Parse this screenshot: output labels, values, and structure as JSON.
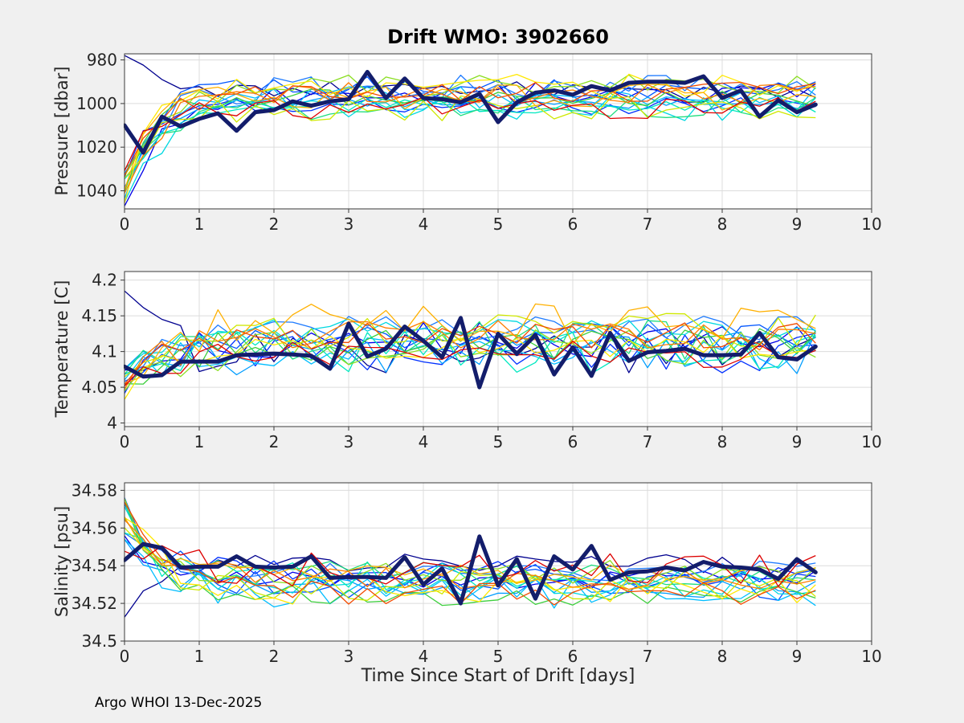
{
  "figure": {
    "title": "Drift WMO: 3902660",
    "xlabel": "Time Since Start of Drift [days]",
    "footer": "Argo WHOI 13-Dec-2025",
    "background": "#f0f0f0",
    "plot_background": "#ffffff",
    "grid_color": "#dcdcdc",
    "axis_color": "#3a3a3a",
    "text_color": "#262626",
    "mean_line_color": "#131d6b"
  },
  "chart_data": [
    {
      "type": "line",
      "panel": "pressure",
      "ylabel": "Pressure [dbar]",
      "xlim": [
        0,
        10
      ],
      "ylim": [
        977.2,
        1048.3
      ],
      "y_reversed": true,
      "grid": true,
      "xticks": [
        0,
        1,
        2,
        3,
        4,
        5,
        6,
        7,
        8,
        9,
        10
      ],
      "xtick_labels": [
        "0",
        "1",
        "2",
        "3",
        "4",
        "5",
        "6",
        "7",
        "8",
        "9",
        "10"
      ],
      "yticks": [
        980,
        1000,
        1020,
        1040
      ],
      "ytick_labels": [
        "980",
        "1000",
        "1020",
        "1040"
      ],
      "x_sampling": {
        "start": 0,
        "step": 0.25,
        "count": 38
      },
      "mean_series": {
        "name": "drift-mean",
        "width": 5,
        "values": [
          1010,
          1022.5,
          1006,
          1010.5,
          1007,
          1004.5,
          1012.5,
          1004,
          1003,
          999,
          1001,
          999,
          998,
          985.5,
          997.5,
          988.5,
          997.5,
          998,
          999.5,
          995.5,
          1008.5,
          999.5,
          995,
          994,
          996,
          992,
          994,
          990.5,
          990,
          990,
          990.5,
          987.5,
          997.5,
          994,
          1006,
          998.5,
          1004,
          1000.5
        ]
      },
      "ensemble": {
        "description": "about 18 thin jet-colored profile lines starting deep near 1031-1048 dbar, converging to a 991-1003 dbar plateau with ~4 dbar scatter",
        "start_range": [
          1031,
          1047
        ],
        "plateau_range": [
          991.5,
          1002.5
        ],
        "tau_range": [
          0.3,
          0.6
        ],
        "noise": 4.2,
        "override_start": {
          "series_index": 0,
          "value": 978
        }
      }
    },
    {
      "type": "line",
      "panel": "temperature",
      "ylabel": "Temperature [C]",
      "xlim": [
        0,
        10
      ],
      "ylim": [
        3.995,
        4.212
      ],
      "y_reversed": false,
      "grid": true,
      "xticks": [
        0,
        1,
        2,
        3,
        4,
        5,
        6,
        7,
        8,
        9,
        10
      ],
      "xtick_labels": [
        "0",
        "1",
        "2",
        "3",
        "4",
        "5",
        "6",
        "7",
        "8",
        "9",
        "10"
      ],
      "yticks": [
        4,
        4.05,
        4.1,
        4.15,
        4.2
      ],
      "ytick_labels": [
        "4",
        "4.05",
        "4.1",
        "4.15",
        "4.2"
      ],
      "x_sampling": {
        "start": 0,
        "step": 0.25,
        "count": 38
      },
      "mean_series": {
        "name": "drift-mean",
        "width": 5,
        "values": [
          4.079,
          4.065,
          4.067,
          4.086,
          4.086,
          4.086,
          4.095,
          4.096,
          4.097,
          4.096,
          4.094,
          4.076,
          4.139,
          4.093,
          4.104,
          4.135,
          4.115,
          4.092,
          4.147,
          4.05,
          4.125,
          4.097,
          4.123,
          4.068,
          4.106,
          4.066,
          4.126,
          4.087,
          4.099,
          4.101,
          4.104,
          4.095,
          4.095,
          4.096,
          4.126,
          4.092,
          4.089,
          4.107
        ]
      },
      "ensemble": {
        "description": "thin lines start 4.03-4.085 C, rise to 4.095-4.14 C band with ~0.02 C scatter, occasional peaks to 4.2",
        "start_range": [
          4.028,
          4.085
        ],
        "plateau_range": [
          4.095,
          4.138
        ],
        "tau_range": [
          0.35,
          0.65
        ],
        "noise": 0.023,
        "override_start": {
          "series_index": 0,
          "value": 4.188
        }
      }
    },
    {
      "type": "line",
      "panel": "salinity",
      "ylabel": "Salinity [psu]",
      "xlim": [
        0,
        10
      ],
      "ylim": [
        34.5,
        34.584
      ],
      "y_reversed": false,
      "grid": true,
      "xticks": [
        0,
        1,
        2,
        3,
        4,
        5,
        6,
        7,
        8,
        9,
        10
      ],
      "xtick_labels": [
        "0",
        "1",
        "2",
        "3",
        "4",
        "5",
        "6",
        "7",
        "8",
        "9",
        "10"
      ],
      "yticks": [
        34.5,
        34.52,
        34.54,
        34.56,
        34.58
      ],
      "ytick_labels": [
        "34.5",
        "34.52",
        "34.54",
        "34.56",
        "34.58"
      ],
      "x_sampling": {
        "start": 0,
        "step": 0.25,
        "count": 38
      },
      "mean_series": {
        "name": "drift-mean",
        "width": 5,
        "values": [
          34.543,
          34.5515,
          34.5495,
          34.539,
          34.5395,
          34.5395,
          34.545,
          34.5395,
          34.539,
          34.5395,
          34.545,
          34.5335,
          34.534,
          34.534,
          34.5335,
          34.5445,
          34.53,
          34.5385,
          34.52,
          34.5555,
          34.5295,
          34.5435,
          34.5225,
          34.545,
          34.538,
          34.5505,
          34.5325,
          34.5365,
          34.537,
          34.539,
          34.5375,
          34.542,
          34.5395,
          34.539,
          34.538,
          34.533,
          34.5435,
          34.5365
        ]
      },
      "ensemble": {
        "description": "thin lines start high 34.547-34.576 psu, settle to 34.522-34.542 psu band with ~0.006 psu scatter",
        "start_range": [
          34.547,
          34.576
        ],
        "plateau_range": [
          34.5225,
          34.542
        ],
        "tau_range": [
          0.3,
          0.55
        ],
        "noise": 0.0062,
        "override_start": {
          "series_index": 0,
          "value": 34.513
        }
      }
    }
  ],
  "ensemble_series": [
    {
      "color": "#00008f",
      "seed": 101
    },
    {
      "color": "#0000e8",
      "seed": 102
    },
    {
      "color": "#0030ff",
      "seed": 103
    },
    {
      "color": "#0055ff",
      "seed": 104
    },
    {
      "color": "#1e7bff",
      "seed": 105
    },
    {
      "color": "#009dff",
      "seed": 106
    },
    {
      "color": "#00bdff",
      "seed": 107
    },
    {
      "color": "#00d8e0",
      "seed": 108
    },
    {
      "color": "#00e8c0",
      "seed": 109
    },
    {
      "color": "#20dd80",
      "seed": 110
    },
    {
      "color": "#3ecf3e",
      "seed": 111
    },
    {
      "color": "#8ade20",
      "seed": 112
    },
    {
      "color": "#cfe800",
      "seed": 113
    },
    {
      "color": "#ffe800",
      "seed": 114
    },
    {
      "color": "#ffb000",
      "seed": 115
    },
    {
      "color": "#ff7d00",
      "seed": 116
    },
    {
      "color": "#f24b00",
      "seed": 117
    },
    {
      "color": "#dd0000",
      "seed": 118
    }
  ]
}
